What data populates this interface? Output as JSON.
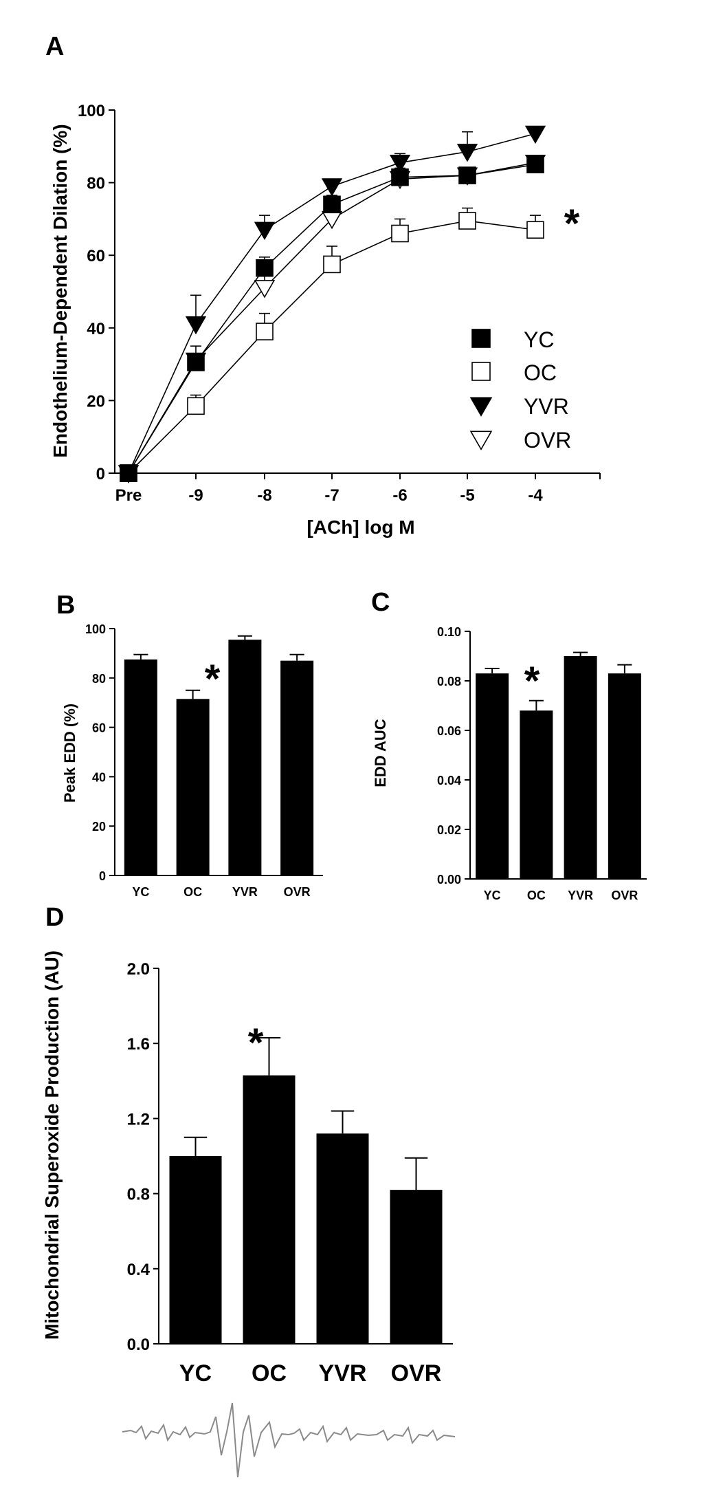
{
  "colors": {
    "ink": "#000000",
    "paper": "#ffffff",
    "trace": "#8a8a8a"
  },
  "panels": {
    "A": "A",
    "B": "B",
    "C": "C",
    "D": "D"
  },
  "chart_data": [
    {
      "id": "A",
      "type": "line",
      "title": "",
      "xlabel": "[ACh] log M",
      "ylabel": "Endothelium-Dependent Dilation (%)",
      "categories": [
        "Pre",
        "-9",
        "-8",
        "-7",
        "-6",
        "-5",
        "-4"
      ],
      "ylim": [
        0,
        100
      ],
      "yticks": [
        0,
        20,
        40,
        60,
        80,
        100
      ],
      "series": [
        {
          "name": "YC",
          "marker": "square-filled",
          "values": [
            0,
            30.5,
            56.5,
            74,
            81.5,
            82,
            85
          ],
          "errors": [
            0,
            2,
            3,
            2.5,
            2,
            1.5,
            1.5
          ]
        },
        {
          "name": "OC",
          "marker": "square-open",
          "values": [
            0,
            18.5,
            39,
            57.5,
            66,
            69.5,
            67
          ],
          "errors": [
            0,
            3,
            5,
            5,
            4,
            3.5,
            4
          ]
        },
        {
          "name": "YVR",
          "marker": "triangle-filled",
          "values": [
            0,
            41,
            67,
            79,
            85.5,
            88.5,
            93.5
          ],
          "errors": [
            0,
            8,
            4,
            1.5,
            2.5,
            5.5,
            1
          ]
        },
        {
          "name": "OVR",
          "marker": "triangle-open",
          "values": [
            0,
            31,
            51,
            70,
            81,
            82,
            85.5
          ],
          "errors": [
            0,
            4,
            5,
            4,
            3,
            2,
            2
          ]
        }
      ],
      "annotation": "*",
      "legend": "bottom-right"
    },
    {
      "id": "B",
      "type": "bar",
      "ylabel": "Peak EDD (%)",
      "categories": [
        "YC",
        "OC",
        "YVR",
        "OVR"
      ],
      "values": [
        87.5,
        71.5,
        95.5,
        87
      ],
      "errors": [
        2,
        3.5,
        1.5,
        2.5
      ],
      "ylim": [
        0,
        100
      ],
      "yticks": [
        0,
        20,
        40,
        60,
        80,
        100
      ],
      "annotation": "*"
    },
    {
      "id": "C",
      "type": "bar",
      "ylabel": "EDD AUC",
      "categories": [
        "YC",
        "OC",
        "YVR",
        "OVR"
      ],
      "values": [
        0.083,
        0.068,
        0.09,
        0.083
      ],
      "errors": [
        0.002,
        0.004,
        0.0015,
        0.0035
      ],
      "ylim": [
        0,
        0.1
      ],
      "yticks": [
        "0.00",
        "0.02",
        "0.04",
        "0.06",
        "0.08",
        "0.10"
      ],
      "annotation": "*"
    },
    {
      "id": "D",
      "type": "bar",
      "ylabel": "Mitochondrial Superoxide Production (AU)",
      "categories": [
        "YC",
        "OC",
        "YVR",
        "OVR"
      ],
      "values": [
        1.0,
        1.43,
        1.12,
        0.82
      ],
      "errors": [
        0.1,
        0.2,
        0.12,
        0.17
      ],
      "ylim": [
        0,
        2.0
      ],
      "yticks": [
        "0.0",
        "0.4",
        "0.8",
        "1.2",
        "1.6",
        "2.0"
      ],
      "annotation": "*",
      "trace": "EPR spectra shown below each group"
    }
  ]
}
